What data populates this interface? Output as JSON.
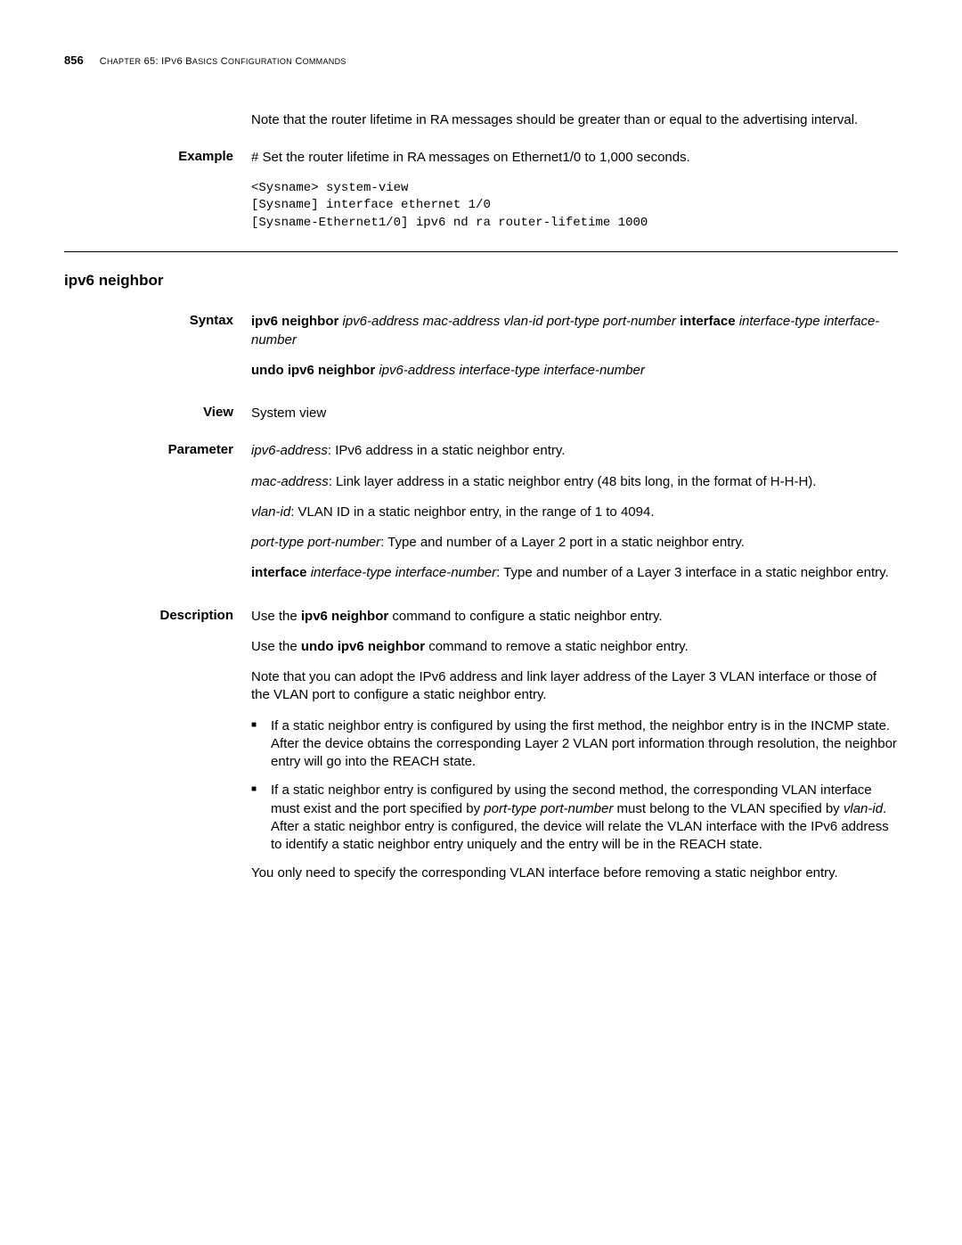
{
  "header": {
    "page_number": "856",
    "chapter_prefix": "C",
    "chapter_text": "HAPTER",
    "chapter_num": " 65: IP",
    "chapter_v6": "V",
    "chapter_basics": "6 B",
    "chapter_basics2": "ASICS",
    "chapter_config": " C",
    "chapter_config2": "ONFIGURATION",
    "chapter_cmds": " C",
    "chapter_cmds2": "OMMANDS"
  },
  "intro_note": "Note that the router lifetime in RA messages should be greater than or equal to the advertising interval.",
  "example": {
    "label": "Example",
    "text": "# Set the router lifetime in RA messages on Ethernet1/0 to 1,000 seconds.",
    "code": "<Sysname> system-view\n[Sysname] interface ethernet 1/0\n[Sysname-Ethernet1/0] ipv6 nd ra router-lifetime 1000"
  },
  "section_title": "ipv6 neighbor",
  "syntax": {
    "label": "Syntax",
    "line1_b": "ipv6 neighbor",
    "line1_i1": " ipv6-address mac-address ",
    "line1_i2": "vlan-id port-type port-number ",
    "line1_b2": "interface",
    "line1_i3": " interface-type interface-number",
    "line2_b": "undo ipv6 neighbor",
    "line2_i": " ipv6-address interface-type interface-number"
  },
  "view": {
    "label": "View",
    "text": "System view"
  },
  "parameter": {
    "label": "Parameter",
    "p1_i": "ipv6-address",
    "p1_t": ": IPv6 address in a static neighbor entry.",
    "p2_i": "mac-address",
    "p2_t": ": Link layer address in a static neighbor entry (48 bits long, in the format of H-H-H).",
    "p3_i": "vlan-id",
    "p3_t": ": VLAN ID in a static neighbor entry, in the range of 1 to 4094.",
    "p4_i": "port-type port-number",
    "p4_t": ": Type and number of a Layer 2 port in a static neighbor entry.",
    "p5_b": "interface",
    "p5_i": " interface-type interface-number",
    "p5_t": ": Type and number of a Layer 3 interface in a static neighbor entry."
  },
  "description": {
    "label": "Description",
    "d1_t1": "Use the ",
    "d1_b": "ipv6 neighbor",
    "d1_t2": " command to configure a static neighbor entry.",
    "d2_t1": "Use the ",
    "d2_b": "undo ipv6 neighbor",
    "d2_t2": " command to remove a static neighbor entry.",
    "d3": "Note that you can adopt the IPv6 address and link layer address of the Layer 3 VLAN interface or those of the VLAN port to configure a static neighbor entry.",
    "b1": "If a static neighbor entry is configured by using the first method, the neighbor entry is in the INCMP state. After the device obtains the corresponding Layer 2 VLAN port information through resolution, the neighbor entry will go into the REACH state.",
    "b2_t1": "If a static neighbor entry is configured by using the second method, the corresponding VLAN interface must exist and the port specified by ",
    "b2_i1": "port-type port-number",
    "b2_t2": " must belong to the VLAN specified by ",
    "b2_i2": "vlan-id",
    "b2_t3": ". After a static neighbor entry is configured, the device will relate the VLAN interface with the IPv6 address to identify a static neighbor entry uniquely and the entry will be in the REACH state.",
    "d4": "You only need to specify the corresponding VLAN interface before removing a static neighbor entry."
  }
}
